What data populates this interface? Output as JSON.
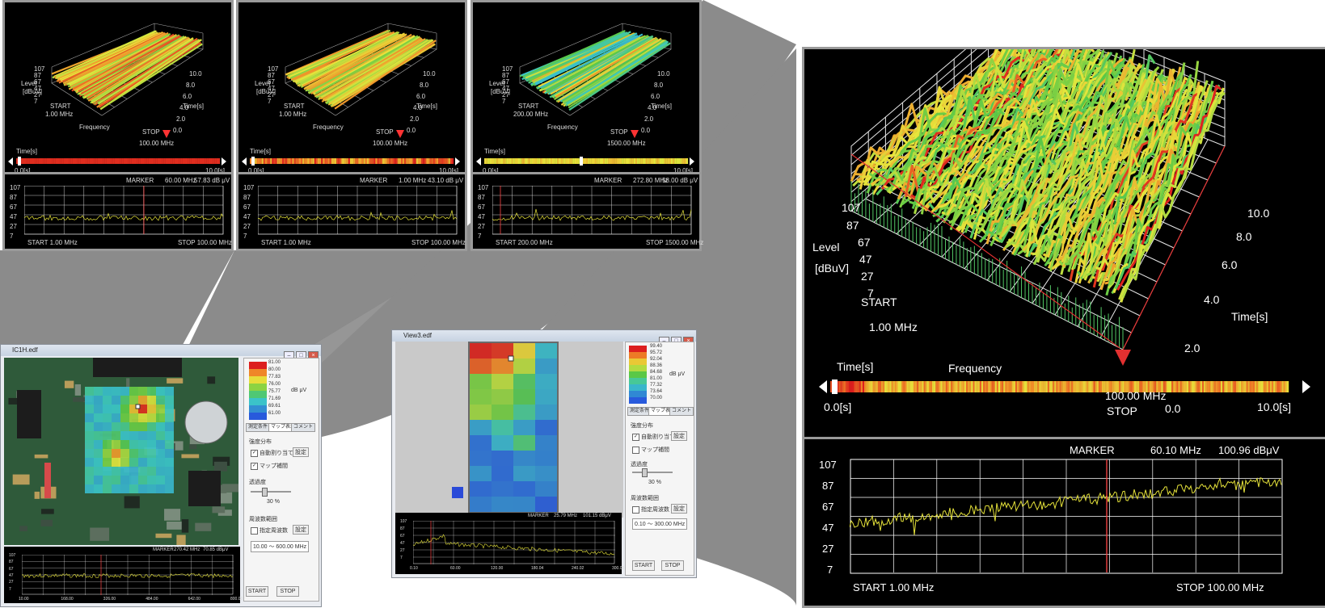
{
  "colors": {
    "frame": "#9a9a9a",
    "bg": "#000000",
    "spectrum": "#e5e23a",
    "marker": "#ff3b3b",
    "grid": "#ffffff"
  },
  "panel_a": {
    "level_ticks": [
      "107",
      "87",
      "67",
      "47",
      "27",
      "7"
    ],
    "level_label": "Level",
    "unit_label": "[dBuV]",
    "start_label": "START",
    "start_freq": "1.00 MHz",
    "freq_label": "Frequency",
    "stop_label": "STOP",
    "stop_freq": "100.00 MHz",
    "time_ticks": [
      "0.0",
      "2.0",
      "4.0",
      "6.0",
      "8.0",
      "10.0"
    ],
    "time_axis_label": "Time[s]",
    "timebar_label": "Time[s]",
    "timebar_start": "0.0[s]",
    "timebar_end": "10.0[s]",
    "timebar_center": "100.00 MHz",
    "marker_label": "MARKER",
    "marker_freq": "60.10 MHz",
    "marker_level": "100.96 dBμV",
    "chart_start": "START  1.00 MHz",
    "chart_stop": "STOP  100.00 MHz"
  },
  "thumbs": [
    {
      "level_ticks": [
        "107",
        "87",
        "67",
        "47",
        "27",
        "7"
      ],
      "level": "Level",
      "unit": "[dBuV]",
      "start": "START",
      "start_freq": "1.00 MHz",
      "freq": "Frequency",
      "stop": "STOP",
      "stop_freq": "100.00 MHz",
      "time_ticks": [
        "0.0",
        "2.0",
        "4.0",
        "6.0",
        "8.0",
        "10.0"
      ],
      "time_lbl": "Time[s]",
      "bar_lbl": "Time[s]",
      "bar_start": "0.0[s]",
      "bar_end": "10.0[s]",
      "marker": "MARKER",
      "m_freq": "60.00 MHz",
      "m_level": "57.83 dB μV",
      "c_start": "START  1.00 MHz",
      "c_stop": "STOP  100.00 MHz"
    },
    {
      "level_ticks": [
        "107",
        "87",
        "67",
        "47",
        "27",
        "7"
      ],
      "level": "Level",
      "unit": "[dBuV]",
      "start": "START",
      "start_freq": "1.00 MHz",
      "freq": "Frequency",
      "stop": "STOP",
      "stop_freq": "100.00 MHz",
      "time_ticks": [
        "0.0",
        "2.0",
        "4.0",
        "6.0",
        "8.0",
        "10.0"
      ],
      "time_lbl": "Time[s]",
      "bar_lbl": "Time[s]",
      "bar_start": "0.0[s]",
      "bar_end": "10.0[s]",
      "marker": "MARKER",
      "m_freq": "1.00 MHz",
      "m_level": "43.10 dB μV",
      "c_start": "START  1.00 MHz",
      "c_stop": "STOP  100.00 MHz"
    },
    {
      "level_ticks": [
        "107",
        "87",
        "67",
        "47",
        "27",
        "7"
      ],
      "level": "Level",
      "unit": "[dBuV]",
      "start": "START",
      "start_freq": "200.00 MHz",
      "freq": "Frequency",
      "stop": "STOP",
      "stop_freq": "1500.00 MHz",
      "time_ticks": [
        "0.0",
        "2.0",
        "4.0",
        "6.0",
        "8.0",
        "10.0"
      ],
      "time_lbl": "Time[s]",
      "bar_lbl": "Time[s]",
      "bar_start": "0.0[s]",
      "bar_end": "10.0[s]",
      "marker": "MARKER",
      "m_freq": "272.80 MHz",
      "m_level": "58.00 dB μV",
      "c_start": "START  200.00 MHz",
      "c_stop": "STOP  1500.00 MHz"
    }
  ],
  "win_left": {
    "title": "IC1H.edf",
    "legend_values": [
      "81.00",
      "80.00",
      "77.83",
      "76.00",
      "75.77",
      "71.69",
      "69.61",
      "61.00"
    ],
    "legend_unit": "dB μV",
    "tabs": [
      "測定条件",
      "マップ表示",
      "コメント"
    ],
    "grp1": "強度分布",
    "chk_auto": "自動割り当て",
    "btn_set": "設定",
    "chk_map": "マップ補間",
    "opacity_lbl": "透過度",
    "opacity_val": "30 %",
    "grp2": "周波数範囲",
    "chk_range": "指定周波数",
    "range_val": "10.00 ～ 600.00 MHz",
    "start_btn": "START",
    "stop_btn": "STOP",
    "marker": "MARKER",
    "m_freq": "270.42 MHz",
    "m_level": "70.85 dBμV",
    "x_ticks": [
      "10.00",
      "168.00",
      "326.00",
      "484.00",
      "642.00",
      "800.00"
    ],
    "y_ticks": [
      "107",
      "87",
      "67",
      "47",
      "27",
      "7"
    ]
  },
  "win_right": {
    "title": "View3.edf",
    "legend_values": [
      "99.40",
      "95.72",
      "92.04",
      "88.36",
      "84.68",
      "81.00",
      "77.32",
      "73.64",
      "70.00"
    ],
    "legend_unit": "dB μV",
    "tabs": [
      "測定条件",
      "マップ表示",
      "コメント"
    ],
    "grp1": "強度分布",
    "chk_auto": "自動割り当て",
    "btn_set": "設定",
    "chk_map": "マップ補間",
    "opacity_lbl": "透過度",
    "opacity_val": "30 %",
    "grp2": "周波数範囲",
    "chk_range": "指定周波数",
    "range_val": "0.10 ～ 300.00 MHz",
    "start_btn": "START",
    "stop_btn": "STOP",
    "marker": "MARKER",
    "m_freq": "25.79 MHz",
    "m_level": "101.15 dBμV",
    "x_ticks": [
      "0.10",
      "60.00",
      "120.00",
      "180.04",
      "240.02",
      "300.00"
    ],
    "y_ticks": [
      "107",
      "87",
      "67",
      "47",
      "27",
      "7"
    ]
  }
}
